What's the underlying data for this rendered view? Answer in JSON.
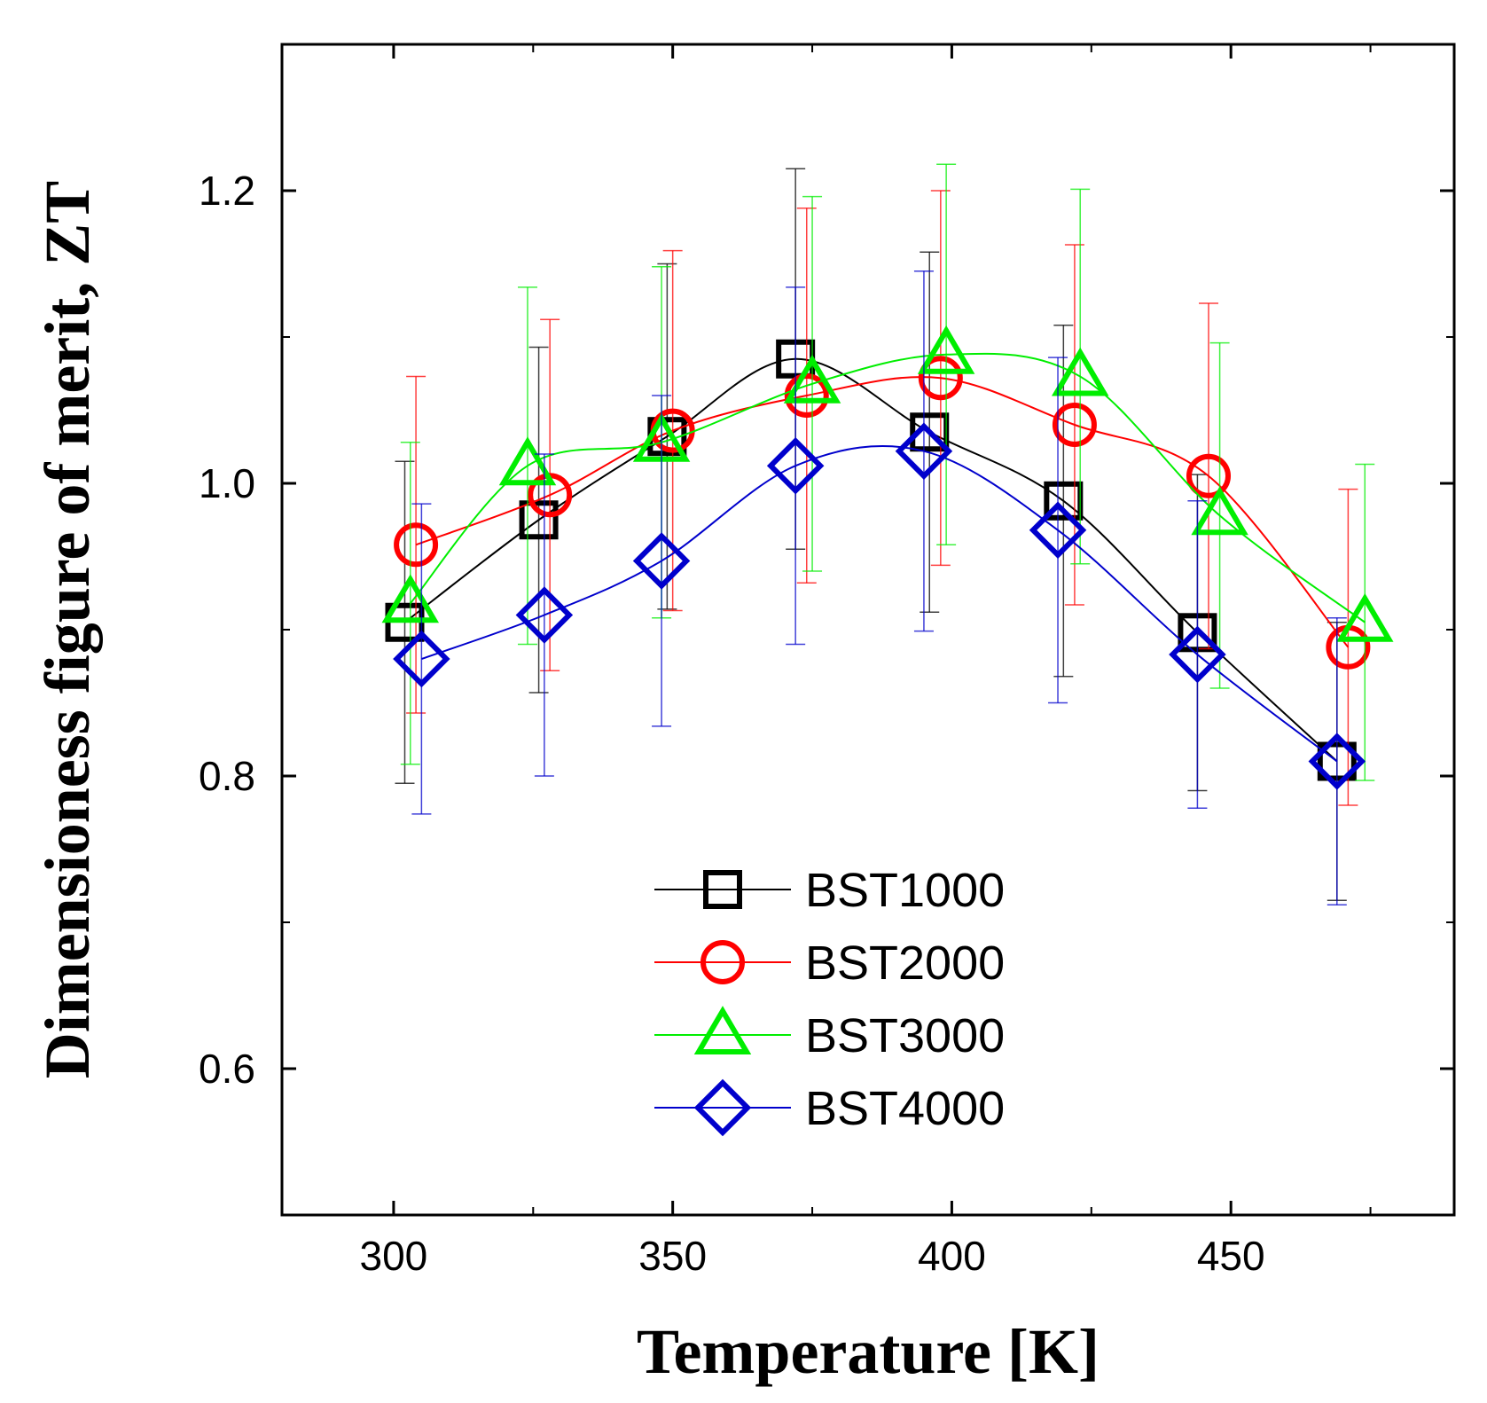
{
  "chart_data": {
    "type": "line",
    "title": "",
    "xlabel": "Temperature [K]",
    "ylabel": "Dimensioness figure of merit, ZT",
    "xlim": [
      280,
      490
    ],
    "ylim": [
      0.5,
      1.3
    ],
    "x_ticks": [
      "300",
      "350",
      "400",
      "450"
    ],
    "x_tick_values": [
      300,
      350,
      400,
      450
    ],
    "y_ticks": [
      "0.6",
      "0.8",
      "1.0",
      "1.2"
    ],
    "y_tick_values": [
      0.6,
      0.8,
      1.0,
      1.2
    ],
    "legend_position": "bottom-center",
    "series": [
      {
        "name": "BST1000",
        "color": "#000000",
        "marker": "square",
        "x": [
          302,
          326,
          349,
          372,
          396,
          420,
          444,
          469
        ],
        "y": [
          0.905,
          0.975,
          1.032,
          1.085,
          1.035,
          0.988,
          0.898,
          0.81
        ],
        "err": [
          0.11,
          0.118,
          0.118,
          0.13,
          0.123,
          0.12,
          0.108,
          0.095
        ]
      },
      {
        "name": "BST2000",
        "color": "#ff0000",
        "marker": "circle",
        "x": [
          304,
          328,
          350,
          374,
          398,
          422,
          446,
          471
        ],
        "y": [
          0.958,
          0.992,
          1.036,
          1.06,
          1.072,
          1.04,
          1.005,
          0.888
        ],
        "err": [
          0.115,
          0.12,
          0.123,
          0.128,
          0.128,
          0.123,
          0.118,
          0.108
        ]
      },
      {
        "name": "BST3000",
        "color": "#00ee00",
        "marker": "triangle",
        "x": [
          303,
          324,
          348,
          375,
          399,
          423,
          448,
          474
        ],
        "y": [
          0.918,
          1.012,
          1.028,
          1.068,
          1.088,
          1.073,
          0.978,
          0.905
        ],
        "err": [
          0.11,
          0.122,
          0.12,
          0.128,
          0.13,
          0.128,
          0.118,
          0.108
        ]
      },
      {
        "name": "BST4000",
        "color": "#0000cc",
        "marker": "diamond",
        "x": [
          305,
          327,
          348,
          372,
          395,
          419,
          444,
          469
        ],
        "y": [
          0.88,
          0.91,
          0.947,
          1.012,
          1.022,
          0.968,
          0.883,
          0.81
        ],
        "err": [
          0.106,
          0.11,
          0.113,
          0.122,
          0.123,
          0.118,
          0.105,
          0.098
        ]
      }
    ]
  }
}
